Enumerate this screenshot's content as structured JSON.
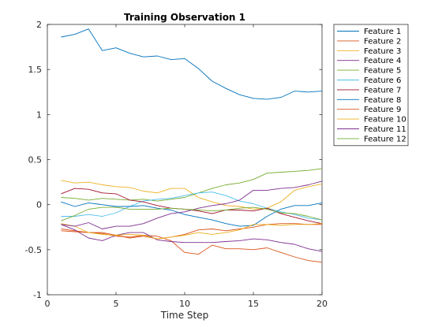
{
  "chart_data": {
    "type": "line",
    "title": "Training Observation 1",
    "xlabel": "Time Step",
    "ylabel": "",
    "xlim": [
      0,
      20
    ],
    "ylim": [
      -1,
      2
    ],
    "xticks": [
      0,
      5,
      10,
      15,
      20
    ],
    "yticks": [
      -1,
      -0.5,
      0,
      0.5,
      1,
      1.5,
      2
    ],
    "grid": false,
    "legend_position": "outside-top-right",
    "x": [
      1,
      2,
      3,
      4,
      5,
      6,
      7,
      8,
      9,
      10,
      11,
      12,
      13,
      14,
      15,
      16,
      17,
      18,
      19,
      20
    ],
    "series": [
      {
        "name": "Feature 1",
        "color": "#0072BD",
        "values": [
          1.86,
          1.89,
          1.95,
          1.71,
          1.74,
          1.68,
          1.64,
          1.65,
          1.61,
          1.62,
          1.51,
          1.37,
          1.29,
          1.22,
          1.18,
          1.17,
          1.19,
          1.26,
          1.25,
          1.26
        ]
      },
      {
        "name": "Feature 2",
        "color": "#D95319",
        "values": [
          -0.27,
          -0.29,
          -0.31,
          -0.32,
          -0.35,
          -0.36,
          -0.34,
          -0.35,
          -0.4,
          -0.53,
          -0.55,
          -0.45,
          -0.49,
          -0.49,
          -0.5,
          -0.48,
          -0.53,
          -0.58,
          -0.62,
          -0.64
        ]
      },
      {
        "name": "Feature 3",
        "color": "#EDB120",
        "values": [
          0.27,
          0.24,
          0.25,
          0.22,
          0.2,
          0.19,
          0.15,
          0.13,
          0.18,
          0.18,
          0.08,
          0.03,
          -0.01,
          -0.02,
          -0.05,
          -0.04,
          0.03,
          0.16,
          0.2,
          0.23
        ]
      },
      {
        "name": "Feature 4",
        "color": "#7E2F8E",
        "values": [
          -0.22,
          -0.28,
          -0.37,
          -0.4,
          -0.34,
          -0.31,
          -0.31,
          -0.39,
          -0.41,
          -0.42,
          -0.42,
          -0.42,
          -0.41,
          -0.4,
          -0.38,
          -0.39,
          -0.42,
          -0.44,
          -0.49,
          -0.52
        ]
      },
      {
        "name": "Feature 5",
        "color": "#77AC30",
        "values": [
          0.08,
          0.07,
          0.05,
          0.07,
          0.06,
          0.05,
          0.06,
          0.04,
          0.06,
          0.08,
          0.13,
          0.18,
          0.22,
          0.24,
          0.28,
          0.35,
          0.36,
          0.37,
          0.38,
          0.4
        ]
      },
      {
        "name": "Feature 6",
        "color": "#4DBEEE",
        "values": [
          -0.13,
          -0.13,
          -0.11,
          -0.13,
          -0.09,
          -0.02,
          0.04,
          0.06,
          0.07,
          0.1,
          0.13,
          0.14,
          0.1,
          0.04,
          0.01,
          -0.04,
          -0.08,
          -0.11,
          -0.15,
          -0.17
        ]
      },
      {
        "name": "Feature 7",
        "color": "#A2142F",
        "values": [
          0.12,
          0.18,
          0.17,
          0.13,
          0.12,
          0.05,
          0.03,
          -0.01,
          -0.04,
          -0.05,
          -0.07,
          -0.1,
          -0.06,
          -0.06,
          -0.07,
          -0.04,
          -0.1,
          -0.14,
          -0.18,
          -0.21
        ]
      },
      {
        "name": "Feature 8",
        "color": "#0072BD",
        "values": [
          0.03,
          -0.02,
          0.02,
          0.0,
          -0.02,
          -0.02,
          -0.01,
          -0.04,
          -0.06,
          -0.11,
          -0.14,
          -0.17,
          -0.21,
          -0.24,
          -0.23,
          -0.13,
          -0.05,
          -0.01,
          -0.01,
          0.02
        ]
      },
      {
        "name": "Feature 9",
        "color": "#D95319",
        "values": [
          -0.29,
          -0.3,
          -0.31,
          -0.31,
          -0.34,
          -0.37,
          -0.35,
          -0.38,
          -0.36,
          -0.33,
          -0.28,
          -0.27,
          -0.29,
          -0.27,
          -0.25,
          -0.22,
          -0.21,
          -0.21,
          -0.22,
          -0.22
        ]
      },
      {
        "name": "Feature 10",
        "color": "#EDB120",
        "values": [
          -0.21,
          -0.24,
          -0.31,
          -0.33,
          -0.34,
          -0.33,
          -0.34,
          -0.38,
          -0.36,
          -0.34,
          -0.31,
          -0.33,
          -0.31,
          -0.28,
          -0.22,
          -0.22,
          -0.23,
          -0.22,
          -0.22,
          -0.21
        ]
      },
      {
        "name": "Feature 11",
        "color": "#7E2F8E",
        "values": [
          -0.22,
          -0.24,
          -0.2,
          -0.27,
          -0.24,
          -0.24,
          -0.21,
          -0.15,
          -0.1,
          -0.08,
          -0.04,
          -0.01,
          0.01,
          0.05,
          0.16,
          0.16,
          0.18,
          0.19,
          0.22,
          0.26
        ]
      },
      {
        "name": "Feature 12",
        "color": "#77AC30",
        "values": [
          -0.18,
          -0.12,
          -0.05,
          -0.03,
          -0.03,
          -0.05,
          -0.05,
          -0.05,
          -0.04,
          -0.05,
          -0.06,
          -0.07,
          -0.06,
          -0.04,
          -0.03,
          -0.05,
          -0.09,
          -0.1,
          -0.13,
          -0.17
        ]
      }
    ]
  }
}
